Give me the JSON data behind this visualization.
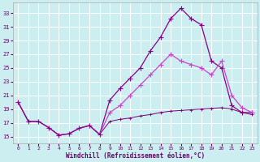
{
  "xlabel": "Windchill (Refroidissement éolien,°C)",
  "bg_color": "#cceef0",
  "grid_color": "#aadddd",
  "line_color_1": "#880088",
  "line_color_2": "#cc44cc",
  "line_color_3": "#770077",
  "x_ticks": [
    0,
    1,
    2,
    3,
    4,
    5,
    6,
    7,
    8,
    9,
    10,
    11,
    12,
    13,
    14,
    15,
    16,
    17,
    18,
    19,
    20,
    21,
    22,
    23
  ],
  "y_ticks": [
    15,
    17,
    19,
    21,
    23,
    25,
    27,
    29,
    31,
    33
  ],
  "xlim": [
    -0.5,
    23.5
  ],
  "ylim": [
    14.0,
    34.5
  ],
  "line1_x": [
    0,
    1,
    2,
    3,
    4,
    5,
    6,
    7,
    8,
    9,
    10,
    11,
    12,
    13,
    14,
    15,
    16,
    17,
    18,
    19,
    20,
    21,
    22,
    23
  ],
  "line1_y": [
    20.0,
    17.2,
    17.2,
    16.3,
    15.2,
    15.4,
    16.2,
    16.6,
    15.3,
    20.3,
    22.0,
    23.5,
    25.0,
    27.5,
    29.5,
    32.2,
    33.7,
    32.2,
    31.3,
    26.0,
    25.0,
    19.5,
    18.5,
    18.5
  ],
  "line2_x": [
    0,
    1,
    2,
    3,
    4,
    5,
    6,
    7,
    8,
    9,
    10,
    11,
    12,
    13,
    14,
    15,
    16,
    17,
    18,
    19,
    20,
    21,
    22,
    23
  ],
  "line2_y": [
    20.0,
    17.2,
    17.2,
    16.3,
    15.2,
    15.4,
    16.2,
    16.6,
    15.3,
    18.5,
    19.5,
    21.0,
    22.5,
    24.0,
    25.5,
    27.0,
    26.0,
    25.5,
    25.0,
    24.0,
    26.0,
    21.0,
    19.2,
    18.5
  ],
  "line3_x": [
    0,
    1,
    2,
    3,
    4,
    5,
    6,
    7,
    8,
    9,
    10,
    11,
    12,
    13,
    14,
    15,
    16,
    17,
    18,
    19,
    20,
    21,
    22,
    23
  ],
  "line3_y": [
    20.0,
    17.2,
    17.2,
    16.3,
    15.2,
    15.4,
    16.2,
    16.6,
    15.3,
    17.2,
    17.5,
    17.7,
    18.0,
    18.2,
    18.5,
    18.7,
    18.8,
    18.9,
    19.0,
    19.1,
    19.2,
    19.0,
    18.5,
    18.2
  ]
}
